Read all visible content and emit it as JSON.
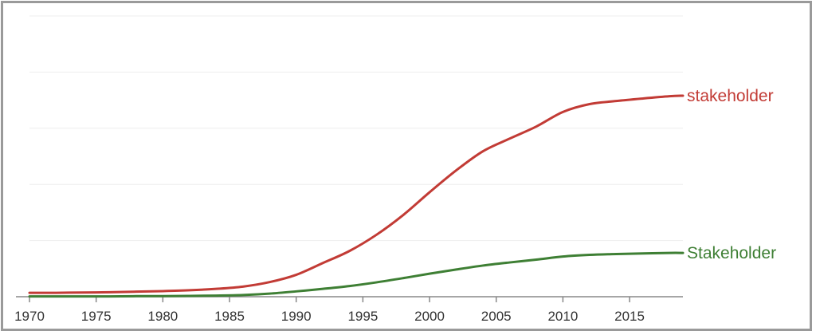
{
  "chart_data": {
    "type": "line",
    "title": "",
    "xlabel": "",
    "ylabel": "",
    "xlim": [
      1970,
      2019
    ],
    "ylim": [
      0,
      1
    ],
    "grid": true,
    "x_ticks": [
      "1970",
      "1975",
      "1980",
      "1985",
      "1990",
      "1995",
      "2000",
      "2005",
      "2010",
      "2015"
    ],
    "x": [
      1970,
      1972,
      1974,
      1976,
      1978,
      1980,
      1982,
      1984,
      1986,
      1988,
      1990,
      1992,
      1994,
      1996,
      1998,
      2000,
      2002,
      2004,
      2006,
      2008,
      2010,
      2012,
      2014,
      2016,
      2018,
      2019
    ],
    "series": [
      {
        "name": "stakeholder",
        "color": "#c23b35",
        "values": [
          0.014,
          0.014,
          0.015,
          0.016,
          0.018,
          0.02,
          0.023,
          0.028,
          0.036,
          0.052,
          0.078,
          0.12,
          0.163,
          0.22,
          0.29,
          0.372,
          0.45,
          0.518,
          0.563,
          0.606,
          0.658,
          0.686,
          0.697,
          0.706,
          0.714,
          0.716
        ]
      },
      {
        "name": "Stakeholder",
        "color": "#3e7f34",
        "values": [
          0.001,
          0.001,
          0.001,
          0.001,
          0.002,
          0.002,
          0.003,
          0.004,
          0.006,
          0.011,
          0.019,
          0.028,
          0.038,
          0.051,
          0.066,
          0.082,
          0.097,
          0.111,
          0.122,
          0.132,
          0.143,
          0.149,
          0.152,
          0.154,
          0.156,
          0.156
        ]
      }
    ]
  }
}
